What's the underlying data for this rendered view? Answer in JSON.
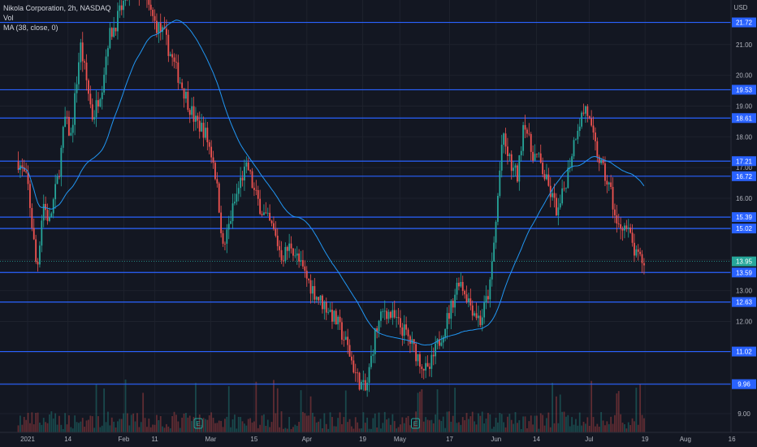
{
  "legend": {
    "symbol": "Nikola Corporation, 2h, NASDAQ",
    "volume": "Vol",
    "ma": "MA (38, close, 0)"
  },
  "colors": {
    "background": "#131722",
    "up": "#26a69a",
    "down": "#ef5350",
    "level_line": "#2962ff",
    "ma_line": "#2196f3",
    "current_price": "#26a69a"
  },
  "chart_data": {
    "type": "candlestick",
    "currency": "USD",
    "y_ticks": [
      "9.00",
      "10.00",
      "11.00",
      "12.00",
      "13.00",
      "14.00",
      "15.00",
      "16.00",
      "17.00",
      "18.00",
      "19.00",
      "20.00",
      "21.00"
    ],
    "x_ticks": [
      "2021",
      "14",
      "Feb",
      "11",
      "Mar",
      "15",
      "Apr",
      "19",
      "May",
      "17",
      "Jun",
      "14",
      "Jul",
      "19",
      "Aug",
      "16"
    ],
    "levels": [
      21.72,
      19.53,
      18.61,
      17.21,
      16.72,
      15.39,
      15.02,
      13.59,
      12.63,
      11.02,
      9.96
    ],
    "current_price": 13.95,
    "price_path": [
      [
        "2020-12-29",
        17.2
      ],
      [
        "2021-01-01",
        16.5
      ],
      [
        "2021-01-04",
        13.6
      ],
      [
        "2021-01-06",
        15.9
      ],
      [
        "2021-01-08",
        15.2
      ],
      [
        "2021-01-11",
        16.8
      ],
      [
        "2021-01-13",
        18.6
      ],
      [
        "2021-01-15",
        18.0
      ],
      [
        "2021-01-18",
        21.0
      ],
      [
        "2021-01-20",
        19.8
      ],
      [
        "2021-01-22",
        18.6
      ],
      [
        "2021-01-25",
        19.7
      ],
      [
        "2021-01-27",
        21.2
      ],
      [
        "2021-01-29",
        21.6
      ],
      [
        "2021-02-02",
        22.6
      ],
      [
        "2021-02-05",
        22.8
      ],
      [
        "2021-02-09",
        22.2
      ],
      [
        "2021-02-11",
        21.7
      ],
      [
        "2021-02-14",
        21.3
      ],
      [
        "2021-02-17",
        20.4
      ],
      [
        "2021-02-20",
        19.6
      ],
      [
        "2021-02-24",
        18.5
      ],
      [
        "2021-02-27",
        18.2
      ],
      [
        "2021-03-02",
        17.2
      ],
      [
        "2021-03-04",
        15.5
      ],
      [
        "2021-03-05",
        14.3
      ],
      [
        "2021-03-08",
        15.6
      ],
      [
        "2021-03-11",
        16.7
      ],
      [
        "2021-03-13",
        17.0
      ],
      [
        "2021-03-15",
        16.2
      ],
      [
        "2021-03-18",
        15.5
      ],
      [
        "2021-03-21",
        15.0
      ],
      [
        "2021-03-24",
        14.1
      ],
      [
        "2021-03-27",
        14.5
      ],
      [
        "2021-03-30",
        13.8
      ],
      [
        "2021-04-02",
        13.2
      ],
      [
        "2021-04-05",
        12.7
      ],
      [
        "2021-04-08",
        12.4
      ],
      [
        "2021-04-11",
        11.9
      ],
      [
        "2021-04-14",
        11.2
      ],
      [
        "2021-04-17",
        10.2
      ],
      [
        "2021-04-20",
        9.7
      ],
      [
        "2021-04-23",
        11.6
      ],
      [
        "2021-04-26",
        12.4
      ],
      [
        "2021-04-29",
        12.1
      ],
      [
        "2021-05-03",
        11.6
      ],
      [
        "2021-05-06",
        11.0
      ],
      [
        "2021-05-10",
        10.3
      ],
      [
        "2021-05-13",
        11.2
      ],
      [
        "2021-05-17",
        12.3
      ],
      [
        "2021-05-20",
        13.4
      ],
      [
        "2021-05-24",
        12.5
      ],
      [
        "2021-05-27",
        12.0
      ],
      [
        "2021-05-30",
        13.1
      ],
      [
        "2021-06-01",
        15.3
      ],
      [
        "2021-06-03",
        18.0
      ],
      [
        "2021-06-06",
        17.0
      ],
      [
        "2021-06-08",
        16.7
      ],
      [
        "2021-06-10",
        18.7
      ],
      [
        "2021-06-12",
        17.6
      ],
      [
        "2021-06-15",
        17.2
      ],
      [
        "2021-06-18",
        16.3
      ],
      [
        "2021-06-21",
        15.5
      ],
      [
        "2021-06-24",
        16.8
      ],
      [
        "2021-06-27",
        18.3
      ],
      [
        "2021-06-30",
        19.0
      ],
      [
        "2021-07-02",
        18.0
      ],
      [
        "2021-07-05",
        17.0
      ],
      [
        "2021-07-08",
        16.2
      ],
      [
        "2021-07-10",
        15.0
      ],
      [
        "2021-07-12",
        15.2
      ],
      [
        "2021-07-14",
        14.8
      ],
      [
        "2021-07-16",
        14.1
      ],
      [
        "2021-07-19",
        13.9
      ]
    ]
  }
}
